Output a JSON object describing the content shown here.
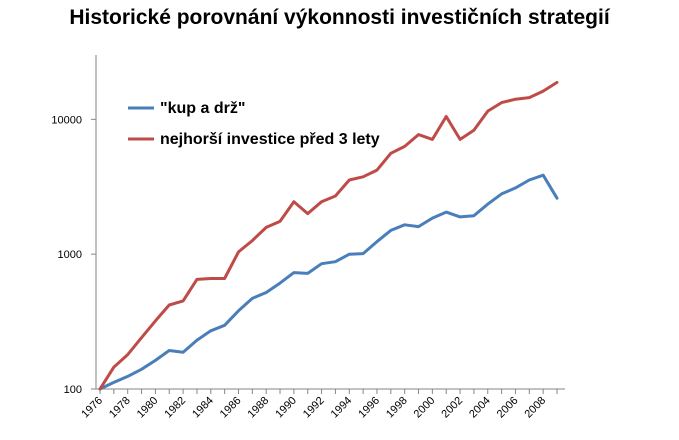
{
  "chart_data": {
    "type": "line",
    "title": "Historické porovnání výkonnosti investičních strategií",
    "xlabel": "",
    "ylabel": "",
    "y_scale": "log",
    "ylim": [
      100,
      30000
    ],
    "xlim": [
      1976,
      2009
    ],
    "y_ticks": [
      100,
      1000,
      10000
    ],
    "x_ticks": [
      1976,
      1978,
      1980,
      1982,
      1984,
      1986,
      1988,
      1990,
      1992,
      1994,
      1996,
      1998,
      2000,
      2002,
      2004,
      2006,
      2008
    ],
    "legend_position": "top-left",
    "x": [
      1976,
      1977,
      1978,
      1979,
      1980,
      1981,
      1982,
      1983,
      1984,
      1985,
      1986,
      1987,
      1988,
      1989,
      1990,
      1991,
      1992,
      1993,
      1994,
      1995,
      1996,
      1997,
      1998,
      1999,
      2000,
      2001,
      2002,
      2003,
      2004,
      2005,
      2006,
      2007,
      2008,
      2009
    ],
    "series": [
      {
        "name": "\"kup a drž\"",
        "color": "#4a7ebb",
        "values": [
          100,
          112,
          124,
          140,
          163,
          193,
          187,
          230,
          270,
          297,
          380,
          470,
          520,
          610,
          730,
          720,
          850,
          880,
          1000,
          1010,
          1240,
          1500,
          1650,
          1600,
          1850,
          2050,
          1890,
          1930,
          2350,
          2800,
          3100,
          3550,
          3850,
          2600
        ]
      },
      {
        "name": "nejhorší investice před 3 lety",
        "color": "#be4b48",
        "values": [
          100,
          145,
          180,
          240,
          320,
          420,
          450,
          650,
          660,
          660,
          1040,
          1260,
          1580,
          1750,
          2450,
          2000,
          2450,
          2700,
          3550,
          3750,
          4200,
          5600,
          6300,
          7700,
          7100,
          10500,
          7100,
          8300,
          11500,
          13300,
          14100,
          14500,
          16200,
          18800
        ]
      }
    ]
  }
}
